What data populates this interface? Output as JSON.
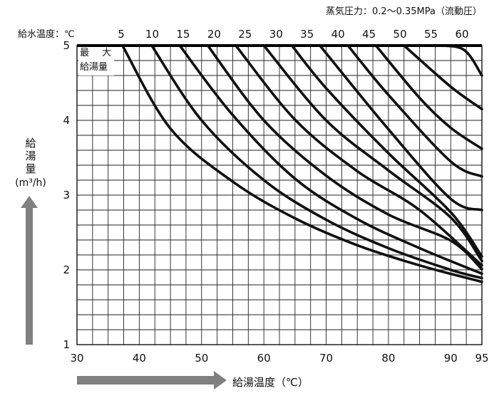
{
  "chart_data": {
    "type": "line",
    "title": "蒸気圧力：0.2〜0.35MPa（流動圧）",
    "xlabel": "給湯温度（℃）",
    "ylabel_chars": [
      "給",
      "湯",
      "量"
    ],
    "ylabel_unit": "(m³/h)",
    "top_axis_label": "給水温度：℃",
    "max_label_line1": "最　大",
    "max_label_line2": "給湯量",
    "xlim": [
      30,
      95
    ],
    "ylim": [
      1,
      5
    ],
    "x_ticks": [
      30,
      40,
      50,
      60,
      70,
      80,
      90,
      95
    ],
    "y_ticks": [
      1,
      2,
      3,
      4,
      5
    ],
    "top_ticks": [
      5,
      10,
      15,
      20,
      25,
      30,
      35,
      40,
      45,
      50,
      55,
      60
    ],
    "grid": true,
    "series": [
      {
        "name": "5",
        "x": [
          37.3,
          45,
          55,
          65,
          75,
          85,
          95
        ],
        "y": [
          5.0,
          3.89,
          3.18,
          2.69,
          2.33,
          2.06,
          1.84
        ]
      },
      {
        "name": "10",
        "x": [
          42.0,
          50,
          60,
          70,
          80,
          90,
          95
        ],
        "y": [
          5.0,
          4.0,
          3.2,
          2.67,
          2.29,
          2.0,
          1.89
        ]
      },
      {
        "name": "15",
        "x": [
          46.5,
          55,
          65,
          75,
          85,
          95
        ],
        "y": [
          5.0,
          4.07,
          3.22,
          2.68,
          2.29,
          1.95
        ]
      },
      {
        "name": "20",
        "x": [
          51.0,
          60,
          70,
          80,
          90,
          95
        ],
        "y": [
          5.0,
          4.0,
          3.26,
          2.74,
          2.39,
          2.01
        ]
      },
      {
        "name": "25",
        "x": [
          55.5,
          65,
          75,
          85,
          95
        ],
        "y": [
          5.0,
          4.01,
          3.32,
          2.8,
          2.06
        ]
      },
      {
        "name": "30",
        "x": [
          60.0,
          70,
          80,
          90,
          95
        ],
        "y": [
          5.0,
          4.0,
          3.33,
          2.7,
          2.12
        ]
      },
      {
        "name": "35",
        "x": [
          64.5,
          70,
          80,
          90,
          95
        ],
        "y": [
          5.0,
          4.43,
          3.56,
          2.77,
          2.18
        ]
      },
      {
        "name": "40",
        "x": [
          69.0,
          80,
          90,
          95
        ],
        "y": [
          5.0,
          3.88,
          2.95,
          2.8
        ]
      },
      {
        "name": "45",
        "x": [
          73.5,
          80,
          90,
          95
        ],
        "y": [
          5.0,
          4.34,
          3.45,
          3.25
        ]
      },
      {
        "name": "50",
        "x": [
          78.0,
          85,
          90,
          95
        ],
        "y": [
          5.0,
          4.3,
          3.9,
          3.62
        ]
      },
      {
        "name": "55",
        "x": [
          82.5,
          90,
          95
        ],
        "y": [
          5.0,
          4.45,
          4.15
        ]
      },
      {
        "name": "60",
        "x": [
          87.0,
          92,
          95
        ],
        "y": [
          5.0,
          4.95,
          4.6
        ]
      }
    ]
  }
}
